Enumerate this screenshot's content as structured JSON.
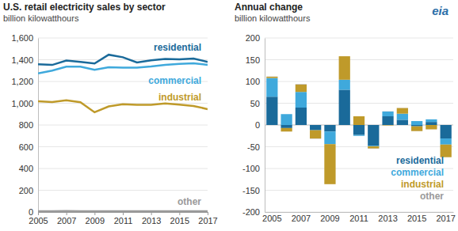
{
  "logo": "eia",
  "chart_data": [
    {
      "type": "line",
      "title": "U.S. retail electricity sales by sector",
      "subtitle": "billion kilowatthours",
      "x": [
        2005,
        2006,
        2007,
        2008,
        2009,
        2010,
        2011,
        2012,
        2013,
        2014,
        2015,
        2016,
        2017
      ],
      "xlim": [
        2005,
        2017
      ],
      "xticks": [
        2005,
        2007,
        2009,
        2011,
        2013,
        2015,
        2017
      ],
      "ylim": [
        0,
        1600
      ],
      "yticks": [
        0,
        200,
        400,
        600,
        800,
        {
          "value": 1000,
          "label": "1,000"
        },
        {
          "value": 1200,
          "label": "1,200"
        },
        {
          "value": 1400,
          "label": "1,400"
        },
        {
          "value": 1600,
          "label": "1,600"
        }
      ],
      "grid": true,
      "series": [
        {
          "name": "residential",
          "color": "#1a6a9a",
          "values": [
            1359,
            1352,
            1392,
            1380,
            1365,
            1446,
            1423,
            1375,
            1395,
            1407,
            1404,
            1411,
            1380
          ]
        },
        {
          "name": "commercial",
          "color": "#3fa9dc",
          "values": [
            1275,
            1300,
            1336,
            1336,
            1307,
            1330,
            1328,
            1327,
            1338,
            1352,
            1361,
            1367,
            1353
          ]
        },
        {
          "name": "industrial",
          "color": "#bf9a2a",
          "values": [
            1019,
            1011,
            1028,
            1009,
            917,
            971,
            991,
            986,
            985,
            998,
            987,
            975,
            946
          ]
        },
        {
          "name": "other",
          "color": "#9a9a9a",
          "values": [
            7.5,
            7.4,
            8.2,
            7.7,
            7.8,
            7.7,
            7.7,
            7.3,
            7.6,
            7.8,
            7.6,
            7.5,
            7.5
          ]
        }
      ]
    },
    {
      "type": "bar",
      "stacked": true,
      "title": "Annual change",
      "subtitle": "billion kilowatthours",
      "categories": [
        "2005",
        null,
        "2007",
        null,
        "2009",
        null,
        "2011",
        null,
        "2013",
        null,
        "2015",
        null,
        "2017"
      ],
      "ylim": [
        -200,
        200
      ],
      "yticks": [
        -200,
        -150,
        -100,
        -50,
        0,
        50,
        100,
        150,
        200
      ],
      "grid": true,
      "legend": "bottom right",
      "series": [
        {
          "name": "residential",
          "color": "#1a6a9a",
          "values": [
            65,
            -7,
            40,
            -12,
            -15,
            81,
            -23,
            -48,
            20,
            12,
            -3,
            7,
            -31
          ]
        },
        {
          "name": "commercial",
          "color": "#3fa9dc",
          "values": [
            43,
            25,
            36,
            0,
            -29,
            23,
            -2,
            -1,
            11,
            14,
            9,
            6,
            -14
          ]
        },
        {
          "name": "industrial",
          "color": "#bf9a2a",
          "values": [
            3,
            -8,
            17,
            -19,
            -92,
            54,
            20,
            -5,
            -1,
            13,
            -11,
            -10,
            -29
          ]
        },
        {
          "name": "other",
          "color": "#9a9a9a",
          "values": [
            0.3,
            -0.1,
            0.8,
            -0.5,
            0.1,
            -0.1,
            0,
            -0.4,
            0.3,
            0.2,
            -0.2,
            -0.1,
            0
          ]
        }
      ]
    }
  ]
}
